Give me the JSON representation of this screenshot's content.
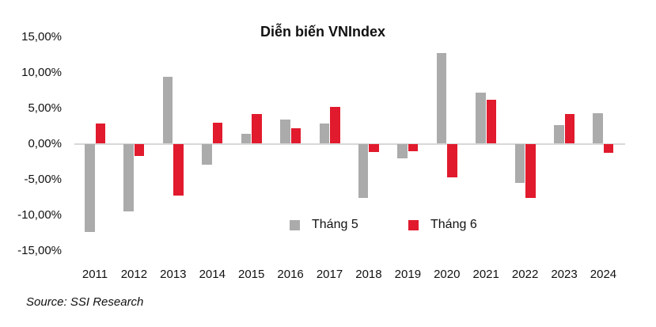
{
  "chart_data": {
    "type": "bar",
    "title": "Diễn biến VNIndex",
    "source": "Source: SSI Research",
    "categories": [
      "2011",
      "2012",
      "2013",
      "2014",
      "2015",
      "2016",
      "2017",
      "2018",
      "2019",
      "2020",
      "2021",
      "2022",
      "2023",
      "2024"
    ],
    "series": [
      {
        "name": "Tháng 5",
        "color": "#ababab",
        "values": [
          -12.3,
          -9.4,
          9.4,
          -2.8,
          1.4,
          3.4,
          2.8,
          -7.5,
          -2.0,
          12.7,
          7.2,
          -5.4,
          2.6,
          4.3
        ]
      },
      {
        "name": "Tháng 6",
        "color": "#e11a2d",
        "values": [
          2.8,
          -1.6,
          -7.2,
          2.9,
          4.2,
          2.2,
          5.2,
          -1.1,
          -1.0,
          -4.6,
          6.1,
          -7.5,
          4.2,
          -1.2
        ]
      }
    ],
    "xlabel": "",
    "ylabel": "",
    "ylim": [
      -15,
      15
    ],
    "grid": false,
    "legend_position": "inside-bottom-center",
    "yticks": [
      {
        "value": 15,
        "label": "15,00%"
      },
      {
        "value": 10,
        "label": "10,00%"
      },
      {
        "value": 5,
        "label": "5,00%"
      },
      {
        "value": 0,
        "label": "0,00%"
      },
      {
        "value": -5,
        "label": "-5,00%"
      },
      {
        "value": -10,
        "label": "-10,00%"
      },
      {
        "value": -15,
        "label": "-15,00%"
      }
    ]
  }
}
